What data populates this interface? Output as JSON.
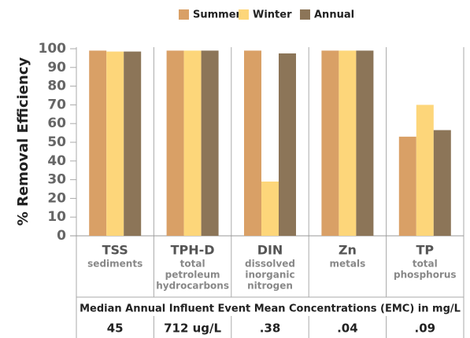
{
  "chart_data": {
    "type": "bar",
    "y_label": "% Removal Efficiency",
    "categories": [
      "TSS",
      "TPH-D",
      "DIN",
      "Zn",
      "TP"
    ],
    "category_descriptions": [
      [
        "sediments"
      ],
      [
        "total",
        "petroleum",
        "hydrocarbons"
      ],
      [
        "dissolved",
        "inorganic",
        "nitrogen"
      ],
      [
        "metals"
      ],
      [
        "total",
        "phosphorus"
      ]
    ],
    "series": [
      {
        "name": "Summer",
        "color": "#d9a066",
        "values": [
          99,
          99,
          99,
          99,
          53
        ]
      },
      {
        "name": "Winter",
        "color": "#fdd67a",
        "values": [
          98.5,
          99,
          29,
          99,
          70
        ]
      },
      {
        "name": "Annual",
        "color": "#8c7558",
        "values": [
          98.5,
          99,
          97.5,
          99,
          56.5
        ]
      }
    ],
    "ylim": [
      0,
      100
    ],
    "yticks": [
      0,
      10,
      20,
      30,
      40,
      50,
      60,
      70,
      80,
      90,
      100
    ],
    "legend": "top",
    "grid": false
  },
  "table": {
    "title": "Median Annual Influent Event Mean Concentrations (EMC) in mg/L",
    "values": [
      "45",
      "712 ug/L",
      ".38",
      ".04",
      ".09"
    ]
  }
}
